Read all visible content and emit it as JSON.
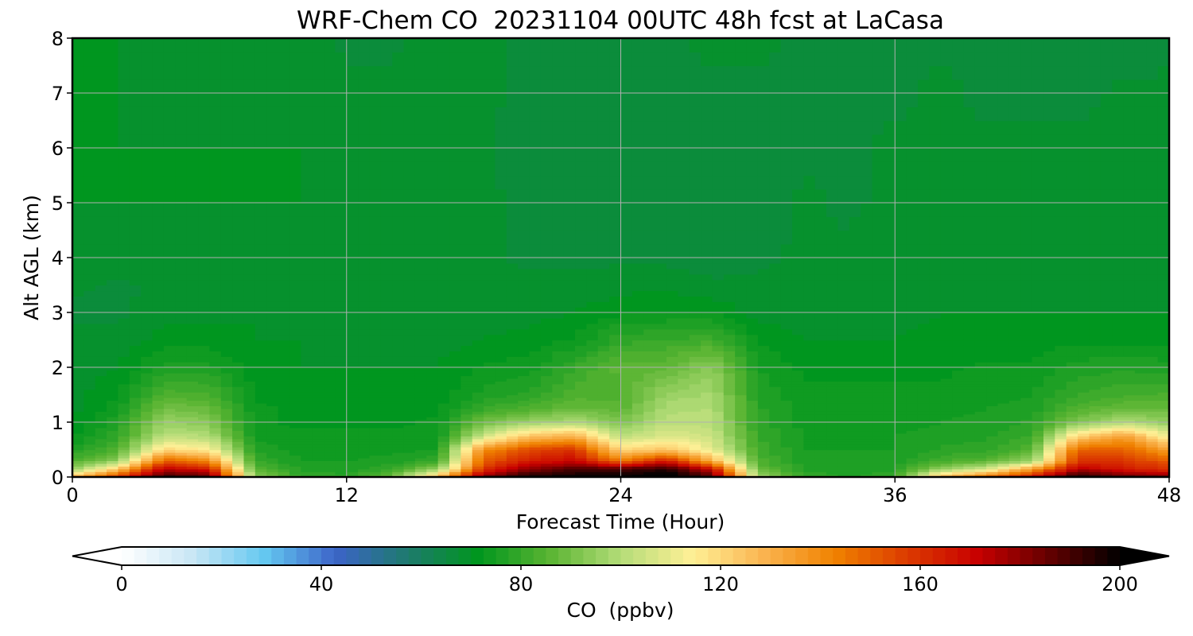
{
  "chart_data": {
    "type": "heatmap",
    "title": "WRF-Chem CO  20231104 00UTC 48h fcst at LaCasa",
    "xlabel": "Forecast Time (Hour)",
    "ylabel": "Alt AGL (km)",
    "xlim": [
      0,
      48
    ],
    "ylim": [
      0,
      8
    ],
    "x_ticks": [
      0,
      12,
      24,
      36,
      48
    ],
    "y_ticks": [
      0,
      1,
      2,
      3,
      4,
      5,
      6,
      7,
      8
    ],
    "grid": true,
    "x_hours": [
      0,
      2,
      4,
      6,
      8,
      10,
      12,
      14,
      16,
      18,
      20,
      22,
      24,
      26,
      28,
      30,
      32,
      34,
      36,
      38,
      40,
      42,
      44,
      46,
      48
    ],
    "y_km": [
      0,
      0.15,
      0.3,
      0.5,
      0.75,
      1.0,
      1.25,
      1.5,
      2.0,
      2.5,
      3.0,
      3.5,
      4.0,
      5.0,
      6.0,
      7.0,
      8.0
    ],
    "profiles": [
      [
        130,
        95,
        84,
        76,
        72,
        70,
        69,
        69,
        69,
        68,
        67,
        68,
        69,
        70,
        70,
        70,
        70
      ],
      [
        160,
        125,
        95,
        84,
        79,
        77,
        74,
        72,
        70,
        68,
        67,
        67,
        69,
        70,
        70,
        70,
        70
      ],
      [
        195,
        175,
        150,
        120,
        102,
        96,
        90,
        84,
        76,
        71,
        69,
        68,
        69,
        70,
        70,
        69,
        68
      ],
      [
        190,
        165,
        140,
        115,
        100,
        93,
        88,
        83,
        76,
        71,
        69,
        69,
        70,
        70,
        70,
        70,
        68
      ],
      [
        95,
        85,
        80,
        77,
        74,
        73,
        73,
        72,
        71,
        70,
        70,
        69,
        69,
        70,
        70,
        69,
        68
      ],
      [
        80,
        77,
        75,
        74,
        73,
        72,
        72,
        71,
        70,
        70,
        69,
        69,
        69,
        70,
        70,
        69,
        68
      ],
      [
        78,
        76,
        75,
        74,
        73,
        72,
        71,
        71,
        70,
        69,
        69,
        69,
        69,
        69,
        69,
        68,
        67
      ],
      [
        90,
        80,
        76,
        74,
        73,
        72,
        71,
        71,
        70,
        69,
        68,
        68,
        69,
        69,
        69,
        68,
        67
      ],
      [
        130,
        95,
        80,
        75,
        73,
        73,
        72,
        71,
        70,
        69,
        68,
        68,
        69,
        69,
        69,
        69,
        68
      ],
      [
        185,
        160,
        150,
        140,
        105,
        90,
        80,
        76,
        73,
        70,
        69,
        68,
        68,
        68,
        68,
        68,
        68
      ],
      [
        200,
        180,
        165,
        155,
        125,
        96,
        84,
        78,
        74,
        71,
        69,
        68,
        67,
        67,
        66,
        67,
        67
      ],
      [
        200,
        190,
        170,
        160,
        130,
        100,
        88,
        84,
        80,
        73,
        70,
        68,
        67,
        66,
        65,
        66,
        67
      ],
      [
        200,
        190,
        145,
        120,
        102,
        91,
        86,
        84,
        86,
        79,
        72,
        69,
        67,
        66,
        65,
        66,
        67
      ],
      [
        205,
        195,
        165,
        125,
        108,
        102,
        99,
        96,
        87,
        80,
        73,
        69,
        67,
        66,
        66,
        67,
        67
      ],
      [
        190,
        170,
        130,
        110,
        104,
        101,
        100,
        98,
        94,
        82,
        72,
        68,
        66,
        66,
        66,
        67,
        68
      ],
      [
        100,
        88,
        84,
        82,
        80,
        79,
        78,
        77,
        75,
        72,
        69,
        68,
        67,
        66,
        66,
        67,
        68
      ],
      [
        80,
        77,
        76,
        75,
        75,
        74,
        74,
        73,
        72,
        70,
        69,
        68,
        68,
        68,
        67,
        67,
        67
      ],
      [
        77,
        76,
        75,
        75,
        74,
        74,
        73,
        73,
        72,
        70,
        69,
        68,
        68,
        67,
        67,
        67,
        67
      ],
      [
        80,
        77,
        76,
        75,
        75,
        74,
        74,
        73,
        72,
        70,
        69,
        69,
        69,
        68,
        68,
        67,
        67
      ],
      [
        130,
        95,
        82,
        78,
        76,
        75,
        74,
        73,
        72,
        71,
        70,
        70,
        69,
        69,
        68,
        68,
        67
      ],
      [
        150,
        105,
        85,
        79,
        77,
        76,
        75,
        74,
        73,
        71,
        70,
        69,
        69,
        69,
        68,
        67,
        66
      ],
      [
        170,
        135,
        95,
        85,
        80,
        78,
        76,
        75,
        73,
        71,
        70,
        69,
        69,
        69,
        68,
        67,
        66
      ],
      [
        200,
        175,
        160,
        150,
        120,
        92,
        84,
        80,
        76,
        72,
        70,
        69,
        69,
        69,
        68,
        67,
        66
      ],
      [
        190,
        165,
        160,
        150,
        135,
        100,
        88,
        82,
        77,
        72,
        70,
        69,
        69,
        69,
        68,
        68,
        66
      ],
      [
        185,
        160,
        150,
        135,
        110,
        95,
        88,
        83,
        76,
        72,
        70,
        69,
        69,
        69,
        68,
        68,
        67
      ]
    ],
    "colorbar": {
      "label": "CO  (ppbv)",
      "min": 0,
      "max": 200,
      "extend": "both",
      "ticks": [
        0,
        40,
        80,
        120,
        160,
        200
      ],
      "levels": 80,
      "colors": [
        "#ffffff",
        "#c8e6f5",
        "#64c8f0",
        "#3c64c8",
        "#1e7a6e",
        "#00961e",
        "#5ab432",
        "#b4dc78",
        "#fff096",
        "#fab450",
        "#f08200",
        "#dc3c00",
        "#c80000",
        "#640000",
        "#000000"
      ]
    }
  }
}
